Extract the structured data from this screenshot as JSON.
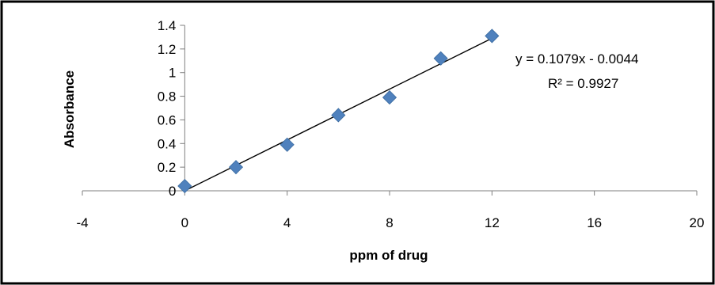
{
  "chart_data": {
    "type": "scatter",
    "title": "",
    "xlabel": "ppm of drug",
    "ylabel": "Absorbance",
    "xlim": [
      -4,
      20
    ],
    "ylim": [
      0,
      1.4
    ],
    "x_ticks": [
      "-4",
      "0",
      "4",
      "8",
      "12",
      "16",
      "20"
    ],
    "y_ticks": [
      "0",
      "0.2",
      "0.4",
      "0.6",
      "0.8",
      "1",
      "1.2",
      "1.4"
    ],
    "grid": false,
    "legend": "none",
    "series": [
      {
        "marker": "diamond",
        "color": "#4F81BD",
        "points": [
          {
            "x": 0,
            "y": 0.04
          },
          {
            "x": 2,
            "y": 0.2
          },
          {
            "x": 4,
            "y": 0.39
          },
          {
            "x": 6,
            "y": 0.64
          },
          {
            "x": 8,
            "y": 0.79
          },
          {
            "x": 10,
            "y": 1.12
          },
          {
            "x": 12,
            "y": 1.31
          }
        ]
      }
    ],
    "trendline": {
      "type": "linear",
      "slope": 0.1079,
      "intercept": -0.0044,
      "x_range": [
        0,
        12
      ],
      "color": "#000000"
    },
    "annotations": {
      "equation": "y = 0.1079x - 0.0044",
      "r_squared": "R² = 0.9927"
    }
  }
}
